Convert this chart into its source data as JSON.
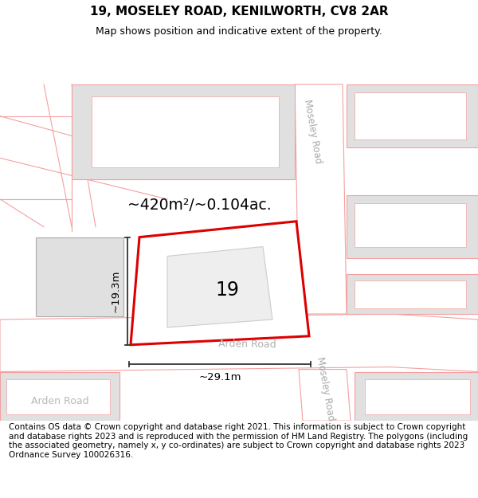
{
  "title": "19, MOSELEY ROAD, KENILWORTH, CV8 2AR",
  "subtitle": "Map shows position and indicative extent of the property.",
  "footer": "Contains OS data © Crown copyright and database right 2021. This information is subject to Crown copyright and database rights 2023 and is reproduced with the permission of HM Land Registry. The polygons (including the associated geometry, namely x, y co-ordinates) are subject to Crown copyright and database rights 2023 Ordnance Survey 100026316.",
  "map_bg_color": "#ffffff",
  "building_color": "#e0e0e0",
  "road_line_color": "#f5a0a0",
  "highlight_color": "#dd0000",
  "area_text": "~420m²/~0.104ac.",
  "number_label": "19",
  "dim_width": "~29.1m",
  "dim_height": "~19.3m",
  "road_label_moseley_top": "Moseley Road",
  "road_label_moseley_right": "Moseley Road",
  "road_label_arden_center": "Arden Road",
  "road_label_arden_left": "Arden Road",
  "title_fontsize": 11,
  "subtitle_fontsize": 9,
  "footer_fontsize": 7.5
}
